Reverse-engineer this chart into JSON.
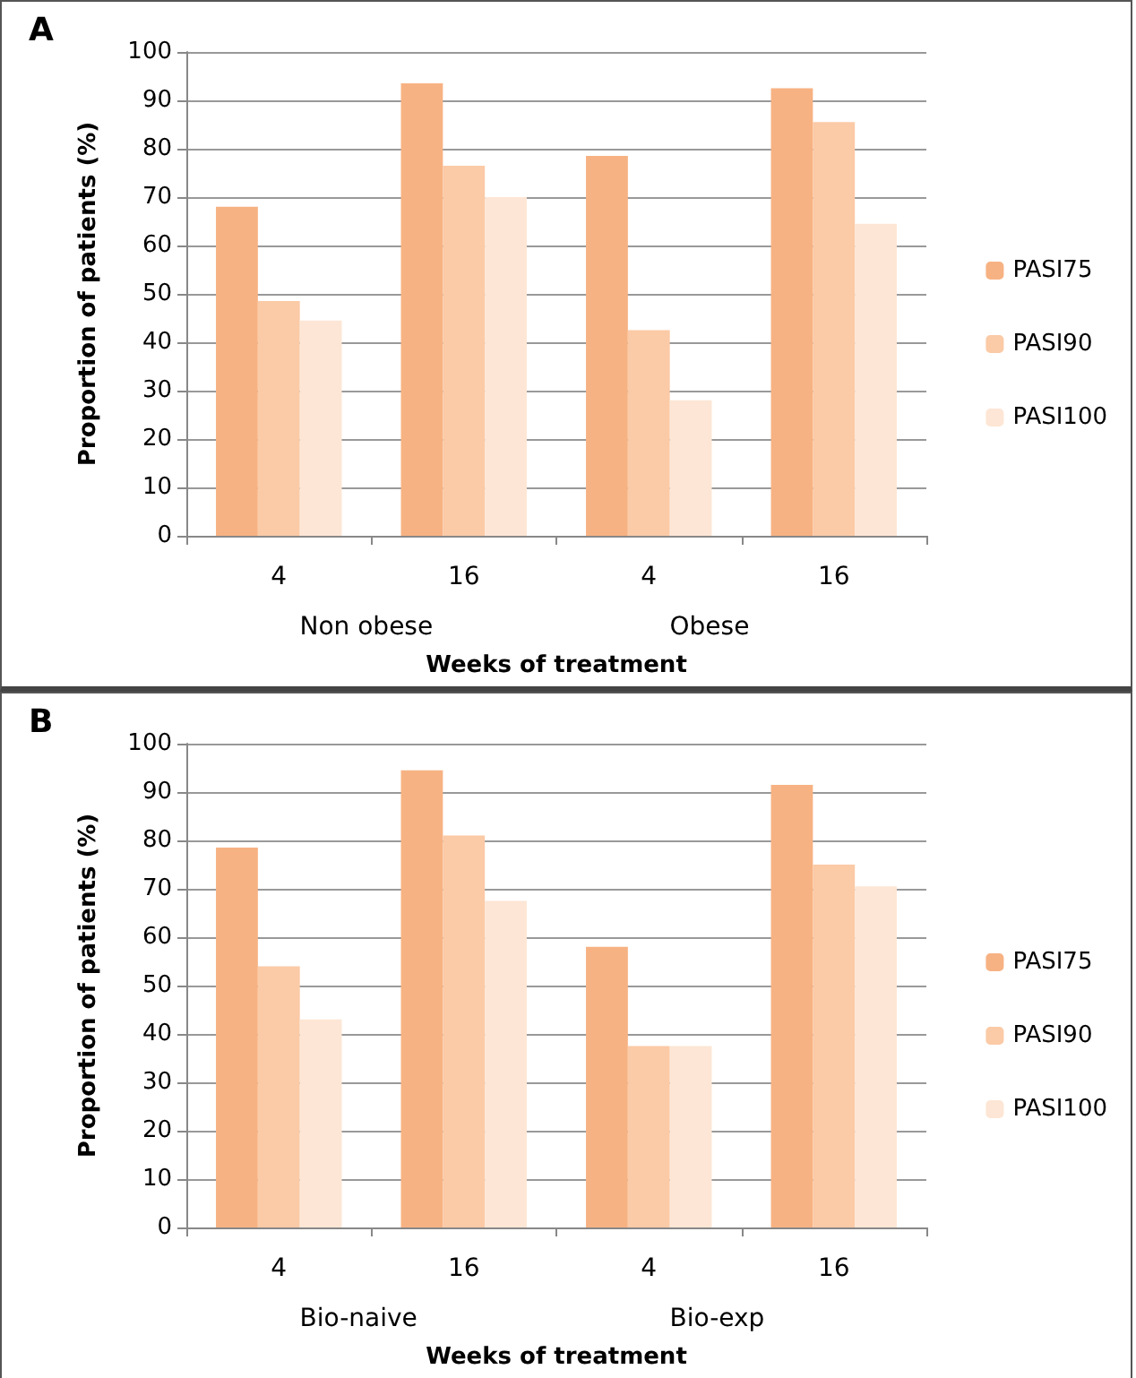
{
  "chart_data": [
    {
      "type": "bar",
      "title": "A",
      "xlabel": "Weeks of treatment",
      "ylabel": "Proportion of patients (%)",
      "categories": [
        "4",
        "16",
        "4",
        "16"
      ],
      "series": [
        {
          "name": "PASI75",
          "color": "#f7b283",
          "values": [
            68,
            93.5,
            78.5,
            92.5
          ]
        },
        {
          "name": "PASI90",
          "color": "#fbcaa6",
          "values": [
            48.5,
            76.5,
            42.5,
            85.5
          ]
        },
        {
          "name": "PASI100",
          "color": "#fde6d5",
          "values": [
            44.5,
            70,
            28,
            64.5
          ]
        }
      ],
      "ylim": [
        0,
        100
      ],
      "yticks": [
        0,
        10,
        20,
        30,
        40,
        50,
        60,
        70,
        80,
        90,
        100
      ],
      "grid": "y",
      "legend": "right",
      "annotations": [
        "Non obese",
        "Obese"
      ]
    },
    {
      "type": "bar",
      "title": "B",
      "xlabel": "Weeks of treatment",
      "ylabel": "Proportion of patients (%)",
      "categories": [
        "4",
        "16",
        "4",
        "16"
      ],
      "series": [
        {
          "name": "PASI75",
          "color": "#f7b283",
          "values": [
            78.5,
            94.5,
            58,
            91.5
          ]
        },
        {
          "name": "PASI90",
          "color": "#fbcaa6",
          "values": [
            54,
            81,
            37.5,
            75
          ]
        },
        {
          "name": "PASI100",
          "color": "#fde6d5",
          "values": [
            43,
            67.5,
            37.5,
            70.5
          ]
        }
      ],
      "ylim": [
        0,
        100
      ],
      "yticks": [
        0,
        10,
        20,
        30,
        40,
        50,
        60,
        70,
        80,
        90,
        100
      ],
      "grid": "y",
      "legend": "right",
      "annotations": [
        "Bio-naive",
        "Bio-exp"
      ]
    }
  ]
}
